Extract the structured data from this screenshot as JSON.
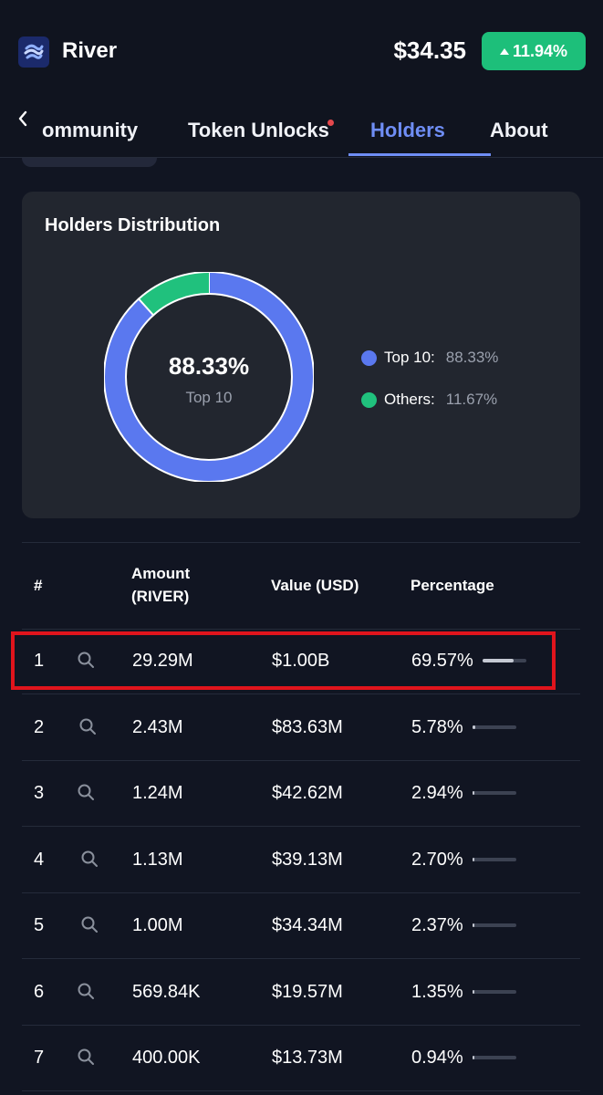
{
  "header": {
    "app_name": "River",
    "price": "$34.35",
    "change": "11.94%",
    "logo_icon": "river-logo-icon",
    "accent_green": "#1dbf7a"
  },
  "tabs": {
    "items": [
      {
        "label": "ommunity"
      },
      {
        "label": "Token Unlocks"
      },
      {
        "label": "Holders"
      },
      {
        "label": "About"
      }
    ],
    "active": "Holders",
    "accent": "#6f8ef5"
  },
  "distribution": {
    "title": "Holders Distribution",
    "center_value": "88.33%",
    "center_label": "Top 10",
    "legend": [
      {
        "name": "Top 10:",
        "value": "88.33%",
        "color": "#5a78ef"
      },
      {
        "name": "Others:",
        "value": "11.67%",
        "color": "#20c17d"
      }
    ]
  },
  "chart_data": {
    "type": "pie",
    "categories": [
      "Top 10",
      "Others"
    ],
    "values": [
      88.33,
      11.67
    ]
  },
  "table": {
    "headers": {
      "rank": "#",
      "amount_line1": "Amount",
      "amount_line2": "(RIVER)",
      "value": "Value (USD)",
      "percentage": "Percentage"
    },
    "rows": [
      {
        "rank": "1",
        "amount": "29.29M",
        "value": "$1.00B",
        "percentage": "69.57%",
        "share": 0.6957
      },
      {
        "rank": "2",
        "amount": "2.43M",
        "value": "$83.63M",
        "percentage": "5.78%",
        "share": 0.0578
      },
      {
        "rank": "3",
        "amount": "1.24M",
        "value": "$42.62M",
        "percentage": "2.94%",
        "share": 0.0294
      },
      {
        "rank": "4",
        "amount": "1.13M",
        "value": "$39.13M",
        "percentage": "2.70%",
        "share": 0.027
      },
      {
        "rank": "5",
        "amount": "1.00M",
        "value": "$34.34M",
        "percentage": "2.37%",
        "share": 0.0237
      },
      {
        "rank": "6",
        "amount": "569.84K",
        "value": "$19.57M",
        "percentage": "1.35%",
        "share": 0.0135
      },
      {
        "rank": "7",
        "amount": "400.00K",
        "value": "$13.73M",
        "percentage": "0.94%",
        "share": 0.0094
      }
    ]
  }
}
